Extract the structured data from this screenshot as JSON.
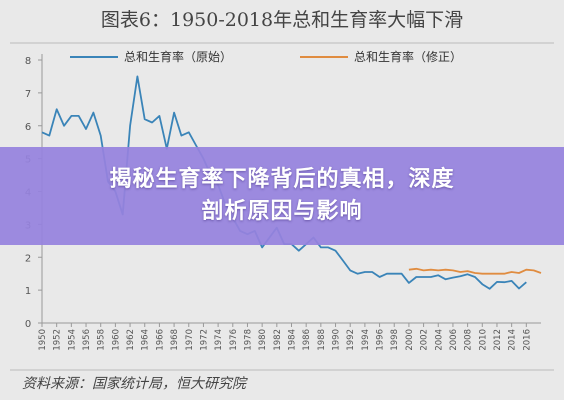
{
  "chart_data": {
    "type": "line",
    "title": "图表6：1950-2018年总和生育率大幅下滑",
    "source": "资料来源：国家统计局，恒大研究院",
    "xlim": [
      1950,
      2018
    ],
    "ylim": [
      0,
      8
    ],
    "y_ticks": [
      "0",
      "1",
      "2",
      "3",
      "4",
      "5",
      "6",
      "7",
      "8"
    ],
    "x_ticks": [
      "1950",
      "1952",
      "1954",
      "1956",
      "1958",
      "1960",
      "1962",
      "1964",
      "1966",
      "1968",
      "1970",
      "1972",
      "1974",
      "1976",
      "1978",
      "1980",
      "1982",
      "1984",
      "1986",
      "1988",
      "1990",
      "1992",
      "1994",
      "1996",
      "1998",
      "2000",
      "2002",
      "2004",
      "2006",
      "2008",
      "2010",
      "2012",
      "2014",
      "2016"
    ],
    "legend_placement": "top",
    "grid": false,
    "series": [
      {
        "name": "总和生育率（原始）",
        "color": "#3a84b8",
        "x": [
          1950,
          1951,
          1952,
          1953,
          1954,
          1955,
          1956,
          1957,
          1958,
          1959,
          1960,
          1961,
          1962,
          1963,
          1964,
          1965,
          1966,
          1967,
          1968,
          1969,
          1970,
          1971,
          1972,
          1973,
          1974,
          1975,
          1976,
          1977,
          1978,
          1979,
          1980,
          1981,
          1982,
          1983,
          1984,
          1985,
          1986,
          1987,
          1988,
          1989,
          1990,
          1991,
          1992,
          1993,
          1994,
          1995,
          1996,
          1997,
          1998,
          1999,
          2000,
          2001,
          2002,
          2003,
          2004,
          2005,
          2006,
          2007,
          2008,
          2009,
          2010,
          2011,
          2012,
          2013,
          2014,
          2015,
          2016
        ],
        "values": [
          5.8,
          5.7,
          6.5,
          6.0,
          6.3,
          6.3,
          5.9,
          6.4,
          5.7,
          4.3,
          4.0,
          3.3,
          6.0,
          7.5,
          6.2,
          6.1,
          6.3,
          5.3,
          6.4,
          5.7,
          5.8,
          5.4,
          5.0,
          4.5,
          4.2,
          3.6,
          3.2,
          2.8,
          2.7,
          2.8,
          2.3,
          2.6,
          2.9,
          2.4,
          2.4,
          2.2,
          2.4,
          2.6,
          2.3,
          2.3,
          2.2,
          1.9,
          1.6,
          1.5,
          1.55,
          1.55,
          1.4,
          1.5,
          1.5,
          1.5,
          1.22,
          1.4,
          1.4,
          1.4,
          1.45,
          1.33,
          1.38,
          1.42,
          1.48,
          1.4,
          1.18,
          1.04,
          1.25,
          1.24,
          1.28,
          1.05,
          1.24
        ]
      },
      {
        "name": "总和生育率（修正）",
        "color": "#e08c40",
        "x": [
          2000,
          2001,
          2002,
          2003,
          2004,
          2005,
          2006,
          2007,
          2008,
          2009,
          2010,
          2011,
          2012,
          2013,
          2014,
          2015,
          2016,
          2017,
          2018
        ],
        "values": [
          1.62,
          1.65,
          1.6,
          1.62,
          1.6,
          1.62,
          1.6,
          1.55,
          1.58,
          1.52,
          1.5,
          1.5,
          1.5,
          1.5,
          1.55,
          1.52,
          1.62,
          1.6,
          1.52
        ]
      }
    ]
  },
  "banner": {
    "line1": "揭秘生育率下降背后的真相，深度",
    "line2": "剖析原因与影响"
  }
}
